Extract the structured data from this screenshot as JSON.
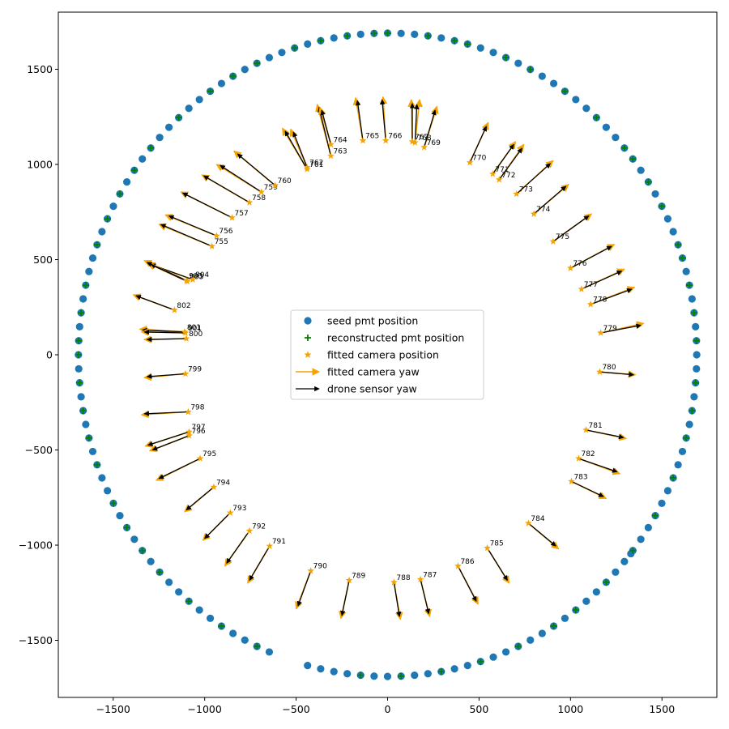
{
  "chart_data": {
    "type": "scatter",
    "title": "",
    "xlabel": "",
    "ylabel": "",
    "xlim": [
      -1800,
      1800
    ],
    "ylim": [
      -1800,
      1800
    ],
    "xticks": [
      -1500,
      -1000,
      -500,
      0,
      500,
      1000,
      1500
    ],
    "yticks": [
      -1500,
      -1000,
      -500,
      0,
      500,
      1000,
      1500
    ],
    "grid": false,
    "legend_position": "center",
    "colors": {
      "seed": "#1f77b4",
      "reconstructed": "#008000",
      "camera": "#f5a300",
      "yaw_fit": "#f5a300",
      "yaw_sensor": "#000000"
    },
    "legend": [
      {
        "key": "seed",
        "label": "seed pmt position"
      },
      {
        "key": "reconstructed",
        "label": "reconstructed pmt position"
      },
      {
        "key": "camera",
        "label": "fitted camera position"
      },
      {
        "key": "yaw_fit",
        "label": "fitted camera yaw"
      },
      {
        "key": "yaw_sensor",
        "label": "drone sensor yaw"
      }
    ],
    "ring": {
      "radius": 1690,
      "angles_deg": [
        0,
        2.5,
        5,
        7.5,
        10,
        12.5,
        15,
        17.5,
        20,
        22.5,
        25,
        27.5,
        30,
        32.5,
        35,
        37.5,
        40,
        42.5,
        45,
        47.5,
        50,
        52.5,
        55,
        57.5,
        60,
        62.5,
        65,
        67.5,
        70,
        72.5,
        75,
        77.5,
        80,
        82.5,
        85,
        87.5,
        90,
        92.5,
        95,
        97.5,
        100,
        102.5,
        105,
        107.5,
        110,
        112.5,
        115,
        117.5,
        120,
        122.5,
        125,
        127.5,
        130,
        132.5,
        135,
        137.5,
        140,
        142.5,
        145,
        147.5,
        150,
        152.5,
        155,
        157.5,
        160,
        162.5,
        165,
        167.5,
        170,
        172.5,
        175,
        177.5,
        180,
        182.5,
        185,
        187.5,
        190,
        192.5,
        195,
        197.5,
        200,
        202.5,
        205,
        207.5,
        210,
        212.5,
        215,
        217.5,
        220,
        222.5,
        225,
        227.5,
        230,
        232.5,
        235,
        237.5,
        240,
        242.5,
        245,
        247.5,
        255,
        257.5,
        260,
        262.5,
        265,
        267.5,
        270,
        272.5,
        275,
        277.5,
        280,
        282.5,
        285,
        287.5,
        290,
        292.5,
        295,
        297.5,
        300,
        302.5,
        305,
        307.5,
        310,
        312.5,
        315,
        317.5,
        320,
        322.5,
        325,
        327.5,
        330,
        332.5,
        335,
        337.5,
        340,
        342.5,
        345,
        347.5,
        350,
        352.5,
        355,
        357.5
      ],
      "reconstructed_angles_deg": [
        2.5,
        7.5,
        12.5,
        17.5,
        20,
        27.5,
        32.5,
        37.5,
        40,
        47.5,
        55,
        62.5,
        67.5,
        75,
        77.5,
        82.5,
        90,
        92.5,
        97.5,
        102.5,
        107.5,
        115,
        120,
        125,
        132.5,
        140,
        145,
        150,
        155,
        160,
        167.5,
        172.5,
        177.5,
        180,
        185,
        190,
        195,
        200,
        207.5,
        212.5,
        217.5,
        222.5,
        230,
        237.5,
        245,
        265,
        272.5,
        280,
        287.5,
        295,
        302.5,
        307.5,
        315,
        322.5,
        330,
        337.5,
        345,
        350,
        355
      ],
      "extra_seed_points": [
        [
          1330,
          -1045
        ]
      ]
    },
    "cameras": [
      {
        "id": "755",
        "x": -960,
        "y": 570,
        "fit_dx": -290,
        "fit_dy": 115,
        "sen_dx": -280,
        "sen_dy": 115
      },
      {
        "id": "756",
        "x": -935,
        "y": 625,
        "fit_dx": -280,
        "fit_dy": 110,
        "sen_dx": -260,
        "sen_dy": 105
      },
      {
        "id": "757",
        "x": -850,
        "y": 720,
        "fit_dx": -280,
        "fit_dy": 135,
        "sen_dx": -270,
        "sen_dy": 130
      },
      {
        "id": "758",
        "x": -755,
        "y": 800,
        "fit_dx": -260,
        "fit_dy": 145,
        "sen_dx": -250,
        "sen_dy": 140
      },
      {
        "id": "759",
        "x": -690,
        "y": 855,
        "fit_dx": -245,
        "fit_dy": 145,
        "sen_dx": -225,
        "sen_dy": 140
      },
      {
        "id": "760",
        "x": -615,
        "y": 890,
        "fit_dx": -225,
        "fit_dy": 180,
        "sen_dx": -205,
        "sen_dy": 165
      },
      {
        "id": "761",
        "x": -440,
        "y": 975,
        "fit_dx": -135,
        "fit_dy": 215,
        "sen_dx": -120,
        "sen_dy": 200
      },
      {
        "id": "762",
        "x": -440,
        "y": 985,
        "fit_dx": -90,
        "fit_dy": 200,
        "sen_dx": -75,
        "sen_dy": 185
      },
      {
        "id": "763",
        "x": -310,
        "y": 1045,
        "fit_dx": -75,
        "fit_dy": 270,
        "sen_dx": -65,
        "sen_dy": 255
      },
      {
        "id": "764",
        "x": -310,
        "y": 1105,
        "fit_dx": -60,
        "fit_dy": 195,
        "sen_dx": -50,
        "sen_dy": 180
      },
      {
        "id": "765",
        "x": -135,
        "y": 1125,
        "fit_dx": -40,
        "fit_dy": 225,
        "sen_dx": -30,
        "sen_dy": 210
      },
      {
        "id": "766",
        "x": -10,
        "y": 1125,
        "fit_dx": -15,
        "fit_dy": 230,
        "sen_dx": -20,
        "sen_dy": 215
      },
      {
        "id": "767",
        "x": 135,
        "y": 1120,
        "fit_dx": -5,
        "fit_dy": 220,
        "sen_dx": 0,
        "sen_dy": 200
      },
      {
        "id": "768",
        "x": 150,
        "y": 1115,
        "fit_dx": 25,
        "fit_dy": 225,
        "sen_dx": 10,
        "sen_dy": 200
      },
      {
        "id": "769",
        "x": 200,
        "y": 1090,
        "fit_dx": 70,
        "fit_dy": 215,
        "sen_dx": 60,
        "sen_dy": 195
      },
      {
        "id": "770",
        "x": 450,
        "y": 1010,
        "fit_dx": 100,
        "fit_dy": 210,
        "sen_dx": 90,
        "sen_dy": 190
      },
      {
        "id": "771",
        "x": 575,
        "y": 950,
        "fit_dx": 125,
        "fit_dy": 170,
        "sen_dx": 115,
        "sen_dy": 155
      },
      {
        "id": "772",
        "x": 610,
        "y": 920,
        "fit_dx": 135,
        "fit_dy": 185,
        "sen_dx": 125,
        "sen_dy": 165
      },
      {
        "id": "773",
        "x": 705,
        "y": 845,
        "fit_dx": 200,
        "fit_dy": 175,
        "sen_dx": 185,
        "sen_dy": 160
      },
      {
        "id": "774",
        "x": 800,
        "y": 740,
        "fit_dx": 190,
        "fit_dy": 155,
        "sen_dx": 175,
        "sen_dy": 145
      },
      {
        "id": "775",
        "x": 905,
        "y": 595,
        "fit_dx": 210,
        "fit_dy": 145,
        "sen_dx": 195,
        "sen_dy": 135
      },
      {
        "id": "776",
        "x": 1000,
        "y": 455,
        "fit_dx": 240,
        "fit_dy": 125,
        "sen_dx": 225,
        "sen_dy": 115
      },
      {
        "id": "777",
        "x": 1060,
        "y": 345,
        "fit_dx": 235,
        "fit_dy": 105,
        "sen_dx": 220,
        "sen_dy": 95
      },
      {
        "id": "778",
        "x": 1110,
        "y": 265,
        "fit_dx": 240,
        "fit_dy": 90,
        "sen_dx": 225,
        "sen_dy": 80
      },
      {
        "id": "779",
        "x": 1165,
        "y": 115,
        "fit_dx": 235,
        "fit_dy": 50,
        "sen_dx": 220,
        "sen_dy": 40
      },
      {
        "id": "780",
        "x": 1160,
        "y": -90,
        "fit_dx": 195,
        "fit_dy": -15,
        "sen_dx": 185,
        "sen_dy": -15
      },
      {
        "id": "781",
        "x": 1085,
        "y": -395,
        "fit_dx": 220,
        "fit_dy": -45,
        "sen_dx": 205,
        "sen_dy": -40
      },
      {
        "id": "782",
        "x": 1045,
        "y": -545,
        "fit_dx": 225,
        "fit_dy": -80,
        "sen_dx": 210,
        "sen_dy": -70
      },
      {
        "id": "783",
        "x": 1005,
        "y": -665,
        "fit_dx": 190,
        "fit_dy": -90,
        "sen_dx": 175,
        "sen_dy": -80
      },
      {
        "id": "784",
        "x": 770,
        "y": -885,
        "fit_dx": 165,
        "fit_dy": -135,
        "sen_dx": 150,
        "sen_dy": -120
      },
      {
        "id": "785",
        "x": 545,
        "y": -1015,
        "fit_dx": 120,
        "fit_dy": -185,
        "sen_dx": 110,
        "sen_dy": -170
      },
      {
        "id": "786",
        "x": 385,
        "y": -1110,
        "fit_dx": 110,
        "fit_dy": -200,
        "sen_dx": 100,
        "sen_dy": -185
      },
      {
        "id": "787",
        "x": 180,
        "y": -1180,
        "fit_dx": 50,
        "fit_dy": -195,
        "sen_dx": 45,
        "sen_dy": -180
      },
      {
        "id": "788",
        "x": 35,
        "y": -1195,
        "fit_dx": 35,
        "fit_dy": -195,
        "sen_dx": 30,
        "sen_dy": -180
      },
      {
        "id": "789",
        "x": -210,
        "y": -1185,
        "fit_dx": -45,
        "fit_dy": -200,
        "sen_dx": -40,
        "sen_dy": -185
      },
      {
        "id": "790",
        "x": -420,
        "y": -1135,
        "fit_dx": -80,
        "fit_dy": -200,
        "sen_dx": -70,
        "sen_dy": -185
      },
      {
        "id": "791",
        "x": -645,
        "y": -1005,
        "fit_dx": -120,
        "fit_dy": -195,
        "sen_dx": -110,
        "sen_dy": -180
      },
      {
        "id": "792",
        "x": -755,
        "y": -925,
        "fit_dx": -135,
        "fit_dy": -185,
        "sen_dx": -125,
        "sen_dy": -170
      },
      {
        "id": "793",
        "x": -860,
        "y": -830,
        "fit_dx": -150,
        "fit_dy": -145,
        "sen_dx": -140,
        "sen_dy": -135
      },
      {
        "id": "794",
        "x": -950,
        "y": -695,
        "fit_dx": -160,
        "fit_dy": -130,
        "sen_dx": -150,
        "sen_dy": -120
      },
      {
        "id": "795",
        "x": -1025,
        "y": -545,
        "fit_dx": -240,
        "fit_dy": -115,
        "sen_dx": -225,
        "sen_dy": -105
      },
      {
        "id": "796",
        "x": -1085,
        "y": -425,
        "fit_dx": -215,
        "fit_dy": -80,
        "sen_dx": -200,
        "sen_dy": -75
      },
      {
        "id": "797",
        "x": -1085,
        "y": -405,
        "fit_dx": -240,
        "fit_dy": -75,
        "sen_dx": -225,
        "sen_dy": -70
      },
      {
        "id": "798",
        "x": -1090,
        "y": -300,
        "fit_dx": -255,
        "fit_dy": -15,
        "sen_dx": -240,
        "sen_dy": -10
      },
      {
        "id": "799",
        "x": -1105,
        "y": -100,
        "fit_dx": -225,
        "fit_dy": -20,
        "sen_dx": -210,
        "sen_dy": -15
      },
      {
        "id": "800",
        "x": -1100,
        "y": 85,
        "fit_dx": -230,
        "fit_dy": -5,
        "sen_dx": -215,
        "sen_dy": -5
      },
      {
        "id": "801",
        "x": -1110,
        "y": 120,
        "fit_dx": -245,
        "fit_dy": 15,
        "sen_dx": -230,
        "sen_dy": 10
      },
      {
        "id": "802",
        "x": -1165,
        "y": 235,
        "fit_dx": -225,
        "fit_dy": 80,
        "sen_dx": -210,
        "sen_dy": 75
      },
      {
        "id": "803",
        "x": -1095,
        "y": 385,
        "fit_dx": -215,
        "fit_dy": 95,
        "sen_dx": -200,
        "sen_dy": 90
      },
      {
        "id": "804",
        "x": -1065,
        "y": 395,
        "fit_dx": -245,
        "fit_dy": 85,
        "sen_dx": -230,
        "sen_dy": 80
      },
      {
        "id": "901",
        "x": -1105,
        "y": 115,
        "fit_dx": -240,
        "fit_dy": 5,
        "sen_dx": -225,
        "sen_dy": 5
      },
      {
        "id": "903",
        "x": -1100,
        "y": 390,
        "fit_dx": -230,
        "fit_dy": 105,
        "sen_dx": -215,
        "sen_dy": 95
      }
    ]
  }
}
